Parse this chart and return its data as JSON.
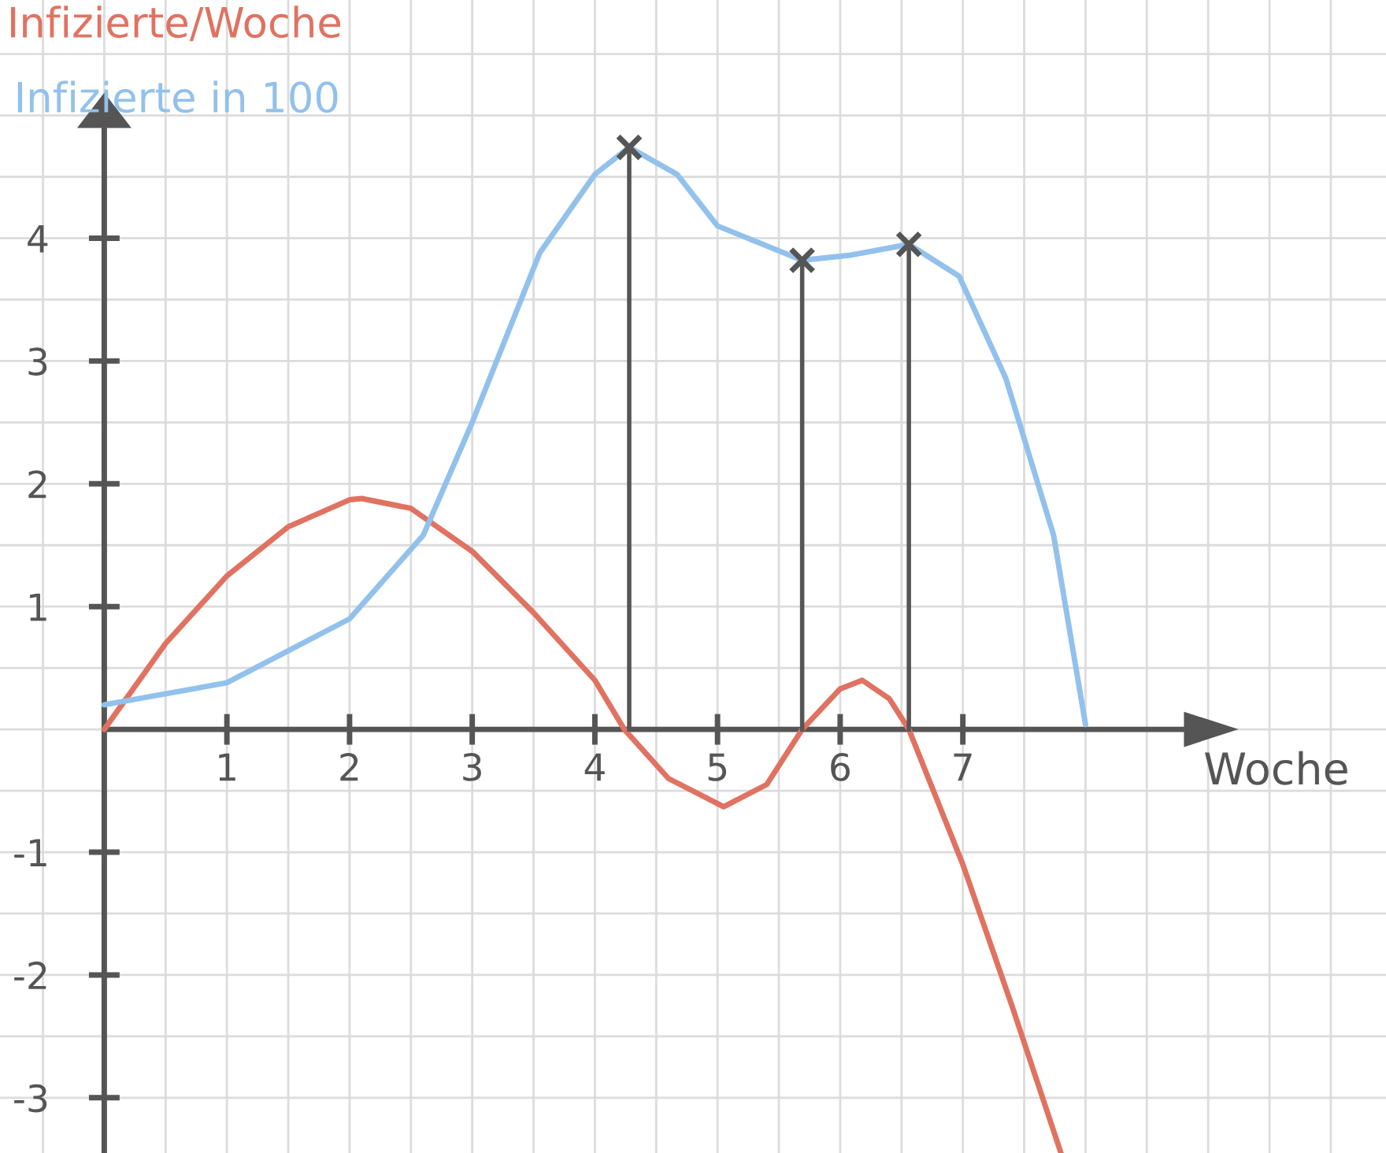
{
  "chart_data": {
    "type": "line",
    "xlabel": "Woche",
    "xlim": [
      -0.85,
      10.45
    ],
    "ylim": [
      -3.45,
      5.94
    ],
    "xticks": [
      1,
      2,
      3,
      4,
      5,
      6,
      7
    ],
    "yticks": [
      -3,
      -2,
      -1,
      1,
      2,
      3,
      4
    ],
    "grid": true,
    "marker": "none",
    "line_style": "solid",
    "series": [
      {
        "name": "Infizierte/Woche",
        "color": "#e07262",
        "x": [
          0,
          0.5,
          1,
          1.5,
          2,
          2.1,
          2.5,
          3,
          3.5,
          4,
          4.24,
          4.6,
          5.05,
          5.4,
          5.69,
          6,
          6.18,
          6.4,
          6.56,
          7,
          7.4,
          7.8
        ],
        "values": [
          0,
          0.7,
          1.25,
          1.65,
          1.87,
          1.88,
          1.8,
          1.45,
          0.95,
          0.4,
          0,
          -0.4,
          -0.63,
          -0.45,
          0,
          0.33,
          0.4,
          0.25,
          0,
          -1.1,
          -2.25,
          -3.45
        ]
      },
      {
        "name": "Infizierte in 100",
        "color": "#92c1ec",
        "x": [
          0,
          1,
          2,
          2.6,
          3,
          3.55,
          4,
          4.28,
          4.67,
          5,
          5.69,
          6.07,
          6.56,
          6.97,
          7.35,
          7.74,
          8.0
        ],
        "values": [
          0.2,
          0.38,
          0.9,
          1.58,
          2.5,
          3.88,
          4.52,
          4.74,
          4.52,
          4.1,
          3.82,
          3.86,
          3.95,
          3.69,
          2.86,
          1.58,
          0.04
        ]
      },
      {
        "type": "lollipop",
        "color": "#555555",
        "marker": "cross",
        "x": [
          4.28,
          5.69,
          6.56
        ],
        "values": [
          4.74,
          3.82,
          3.95
        ]
      }
    ]
  }
}
